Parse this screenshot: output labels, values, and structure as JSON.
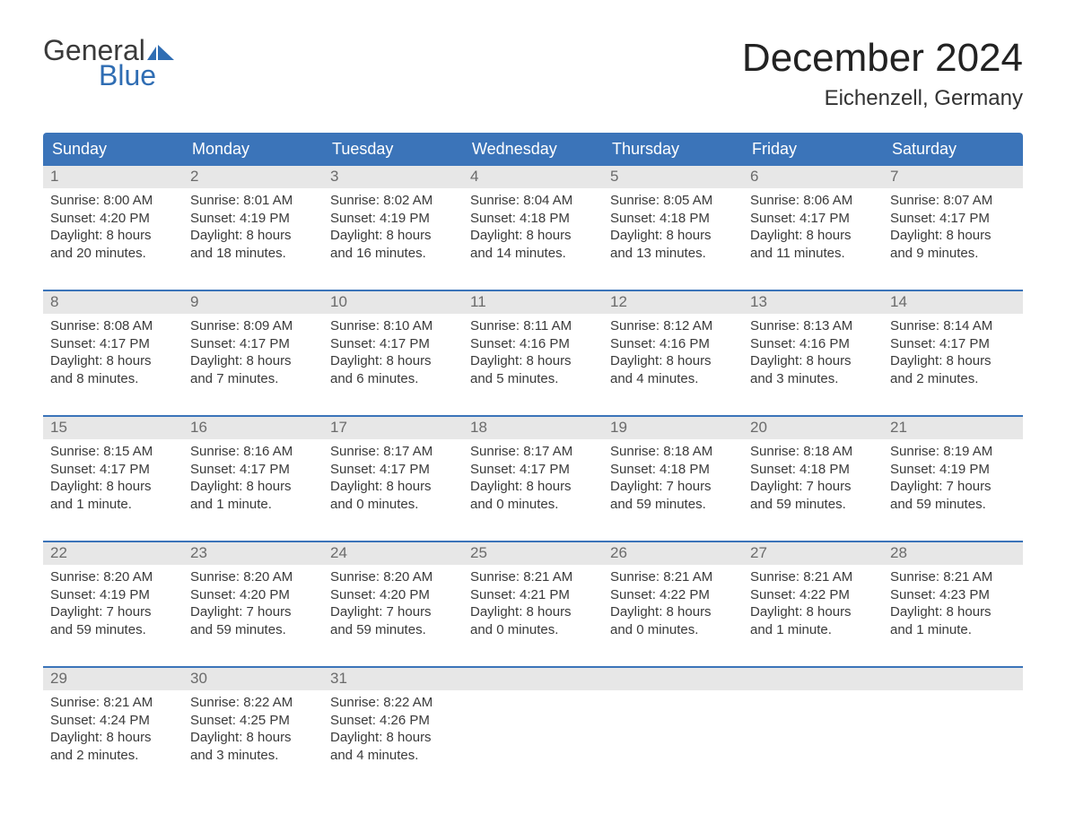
{
  "logo": {
    "word1": "General",
    "word2": "Blue",
    "brand_color": "#2f6db3",
    "text_color": "#3a3a3a"
  },
  "header": {
    "title": "December 2024",
    "location": "Eichenzell, Germany"
  },
  "colors": {
    "header_bg": "#3b74b9",
    "header_text": "#ffffff",
    "daynum_bg": "#e7e7e7",
    "daynum_text": "#6b6b6b",
    "body_text": "#3a3a3a",
    "week_border": "#3b74b9",
    "background": "#ffffff"
  },
  "dow": [
    "Sunday",
    "Monday",
    "Tuesday",
    "Wednesday",
    "Thursday",
    "Friday",
    "Saturday"
  ],
  "weeks": [
    [
      {
        "num": "1",
        "sunrise": "Sunrise: 8:00 AM",
        "sunset": "Sunset: 4:20 PM",
        "dl1": "Daylight: 8 hours",
        "dl2": "and 20 minutes."
      },
      {
        "num": "2",
        "sunrise": "Sunrise: 8:01 AM",
        "sunset": "Sunset: 4:19 PM",
        "dl1": "Daylight: 8 hours",
        "dl2": "and 18 minutes."
      },
      {
        "num": "3",
        "sunrise": "Sunrise: 8:02 AM",
        "sunset": "Sunset: 4:19 PM",
        "dl1": "Daylight: 8 hours",
        "dl2": "and 16 minutes."
      },
      {
        "num": "4",
        "sunrise": "Sunrise: 8:04 AM",
        "sunset": "Sunset: 4:18 PM",
        "dl1": "Daylight: 8 hours",
        "dl2": "and 14 minutes."
      },
      {
        "num": "5",
        "sunrise": "Sunrise: 8:05 AM",
        "sunset": "Sunset: 4:18 PM",
        "dl1": "Daylight: 8 hours",
        "dl2": "and 13 minutes."
      },
      {
        "num": "6",
        "sunrise": "Sunrise: 8:06 AM",
        "sunset": "Sunset: 4:17 PM",
        "dl1": "Daylight: 8 hours",
        "dl2": "and 11 minutes."
      },
      {
        "num": "7",
        "sunrise": "Sunrise: 8:07 AM",
        "sunset": "Sunset: 4:17 PM",
        "dl1": "Daylight: 8 hours",
        "dl2": "and 9 minutes."
      }
    ],
    [
      {
        "num": "8",
        "sunrise": "Sunrise: 8:08 AM",
        "sunset": "Sunset: 4:17 PM",
        "dl1": "Daylight: 8 hours",
        "dl2": "and 8 minutes."
      },
      {
        "num": "9",
        "sunrise": "Sunrise: 8:09 AM",
        "sunset": "Sunset: 4:17 PM",
        "dl1": "Daylight: 8 hours",
        "dl2": "and 7 minutes."
      },
      {
        "num": "10",
        "sunrise": "Sunrise: 8:10 AM",
        "sunset": "Sunset: 4:17 PM",
        "dl1": "Daylight: 8 hours",
        "dl2": "and 6 minutes."
      },
      {
        "num": "11",
        "sunrise": "Sunrise: 8:11 AM",
        "sunset": "Sunset: 4:16 PM",
        "dl1": "Daylight: 8 hours",
        "dl2": "and 5 minutes."
      },
      {
        "num": "12",
        "sunrise": "Sunrise: 8:12 AM",
        "sunset": "Sunset: 4:16 PM",
        "dl1": "Daylight: 8 hours",
        "dl2": "and 4 minutes."
      },
      {
        "num": "13",
        "sunrise": "Sunrise: 8:13 AM",
        "sunset": "Sunset: 4:16 PM",
        "dl1": "Daylight: 8 hours",
        "dl2": "and 3 minutes."
      },
      {
        "num": "14",
        "sunrise": "Sunrise: 8:14 AM",
        "sunset": "Sunset: 4:17 PM",
        "dl1": "Daylight: 8 hours",
        "dl2": "and 2 minutes."
      }
    ],
    [
      {
        "num": "15",
        "sunrise": "Sunrise: 8:15 AM",
        "sunset": "Sunset: 4:17 PM",
        "dl1": "Daylight: 8 hours",
        "dl2": "and 1 minute."
      },
      {
        "num": "16",
        "sunrise": "Sunrise: 8:16 AM",
        "sunset": "Sunset: 4:17 PM",
        "dl1": "Daylight: 8 hours",
        "dl2": "and 1 minute."
      },
      {
        "num": "17",
        "sunrise": "Sunrise: 8:17 AM",
        "sunset": "Sunset: 4:17 PM",
        "dl1": "Daylight: 8 hours",
        "dl2": "and 0 minutes."
      },
      {
        "num": "18",
        "sunrise": "Sunrise: 8:17 AM",
        "sunset": "Sunset: 4:17 PM",
        "dl1": "Daylight: 8 hours",
        "dl2": "and 0 minutes."
      },
      {
        "num": "19",
        "sunrise": "Sunrise: 8:18 AM",
        "sunset": "Sunset: 4:18 PM",
        "dl1": "Daylight: 7 hours",
        "dl2": "and 59 minutes."
      },
      {
        "num": "20",
        "sunrise": "Sunrise: 8:18 AM",
        "sunset": "Sunset: 4:18 PM",
        "dl1": "Daylight: 7 hours",
        "dl2": "and 59 minutes."
      },
      {
        "num": "21",
        "sunrise": "Sunrise: 8:19 AM",
        "sunset": "Sunset: 4:19 PM",
        "dl1": "Daylight: 7 hours",
        "dl2": "and 59 minutes."
      }
    ],
    [
      {
        "num": "22",
        "sunrise": "Sunrise: 8:20 AM",
        "sunset": "Sunset: 4:19 PM",
        "dl1": "Daylight: 7 hours",
        "dl2": "and 59 minutes."
      },
      {
        "num": "23",
        "sunrise": "Sunrise: 8:20 AM",
        "sunset": "Sunset: 4:20 PM",
        "dl1": "Daylight: 7 hours",
        "dl2": "and 59 minutes."
      },
      {
        "num": "24",
        "sunrise": "Sunrise: 8:20 AM",
        "sunset": "Sunset: 4:20 PM",
        "dl1": "Daylight: 7 hours",
        "dl2": "and 59 minutes."
      },
      {
        "num": "25",
        "sunrise": "Sunrise: 8:21 AM",
        "sunset": "Sunset: 4:21 PM",
        "dl1": "Daylight: 8 hours",
        "dl2": "and 0 minutes."
      },
      {
        "num": "26",
        "sunrise": "Sunrise: 8:21 AM",
        "sunset": "Sunset: 4:22 PM",
        "dl1": "Daylight: 8 hours",
        "dl2": "and 0 minutes."
      },
      {
        "num": "27",
        "sunrise": "Sunrise: 8:21 AM",
        "sunset": "Sunset: 4:22 PM",
        "dl1": "Daylight: 8 hours",
        "dl2": "and 1 minute."
      },
      {
        "num": "28",
        "sunrise": "Sunrise: 8:21 AM",
        "sunset": "Sunset: 4:23 PM",
        "dl1": "Daylight: 8 hours",
        "dl2": "and 1 minute."
      }
    ],
    [
      {
        "num": "29",
        "sunrise": "Sunrise: 8:21 AM",
        "sunset": "Sunset: 4:24 PM",
        "dl1": "Daylight: 8 hours",
        "dl2": "and 2 minutes."
      },
      {
        "num": "30",
        "sunrise": "Sunrise: 8:22 AM",
        "sunset": "Sunset: 4:25 PM",
        "dl1": "Daylight: 8 hours",
        "dl2": "and 3 minutes."
      },
      {
        "num": "31",
        "sunrise": "Sunrise: 8:22 AM",
        "sunset": "Sunset: 4:26 PM",
        "dl1": "Daylight: 8 hours",
        "dl2": "and 4 minutes."
      },
      {
        "empty": true
      },
      {
        "empty": true
      },
      {
        "empty": true
      },
      {
        "empty": true
      }
    ]
  ]
}
